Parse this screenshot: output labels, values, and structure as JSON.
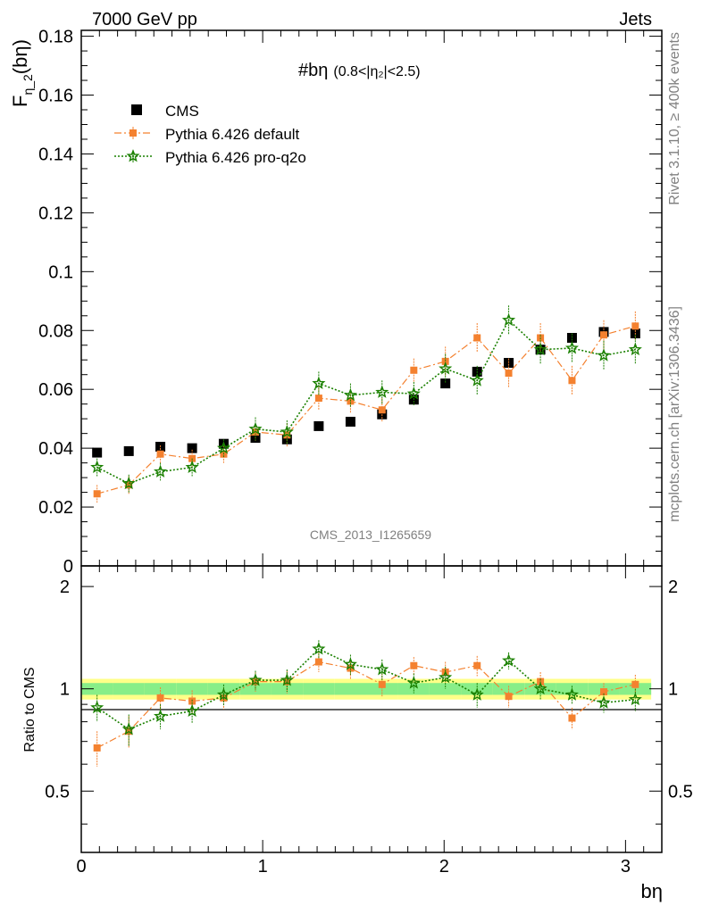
{
  "header": {
    "left": "7000 GeV pp",
    "right": "Jets"
  },
  "side_labels": {
    "rivet": "Rivet 3.1.10, ≥ 400k events",
    "mcplots": "mcplots.cern.ch [arXiv:1306.3436]"
  },
  "watermark": "CMS_2013_I1265659",
  "chart_data": {
    "type": "scatter",
    "title": "#bη",
    "title_cut": "(0.8<|η₂|<2.5)",
    "ylabel": "F_η_2(bη)",
    "ylabel_main": "F",
    "ylabel_sub": "η_2",
    "ylabel_paren": "(bη)",
    "xlabel": "bη",
    "ratio_ylabel": "Ratio to CMS",
    "xlim": [
      0,
      3.2
    ],
    "ylim": [
      0,
      0.182
    ],
    "ratio_ylim": [
      0.33,
      2.3
    ],
    "xticks": [
      "0",
      "1",
      "2",
      "3"
    ],
    "xtick_values": [
      0,
      1,
      2,
      3
    ],
    "yticks": [
      "0",
      "0.02",
      "0.04",
      "0.06",
      "0.08",
      "0.1",
      "0.12",
      "0.14",
      "0.16",
      "0.18"
    ],
    "ytick_values": [
      0,
      0.02,
      0.04,
      0.06,
      0.08,
      0.1,
      0.12,
      0.14,
      0.16,
      0.18
    ],
    "ratio_yticks": [
      "0.5",
      "1",
      "2"
    ],
    "ratio_ytick_values": [
      0.5,
      1,
      2
    ],
    "x": [
      0.087,
      0.262,
      0.436,
      0.611,
      0.785,
      0.96,
      1.134,
      1.309,
      1.484,
      1.658,
      1.833,
      2.007,
      2.182,
      2.356,
      2.531,
      2.705,
      2.88,
      3.054
    ],
    "series": [
      {
        "name": "CMS",
        "color": "#000000",
        "values": [
          0.0385,
          0.039,
          0.0405,
          0.04,
          0.0415,
          0.0435,
          0.043,
          0.0475,
          0.049,
          0.0515,
          0.0565,
          0.062,
          0.066,
          0.069,
          0.0735,
          0.0775,
          0.0795,
          0.079
        ],
        "errors": [
          0.001,
          0.001,
          0.001,
          0.001,
          0.001,
          0.001,
          0.001,
          0.001,
          0.001,
          0.001,
          0.001,
          0.001,
          0.001,
          0.001,
          0.001,
          0.001,
          0.0015,
          0.002
        ]
      },
      {
        "name": "Pythia 6.426 default",
        "color": "#f4812f",
        "values": [
          0.0245,
          0.0275,
          0.038,
          0.0365,
          0.038,
          0.0455,
          0.0445,
          0.057,
          0.056,
          0.053,
          0.0665,
          0.0695,
          0.0775,
          0.0655,
          0.0775,
          0.063,
          0.0785,
          0.0815
        ],
        "errors": [
          0.003,
          0.003,
          0.003,
          0.003,
          0.003,
          0.003,
          0.004,
          0.004,
          0.004,
          0.004,
          0.004,
          0.005,
          0.005,
          0.005,
          0.005,
          0.005,
          0.005,
          0.005
        ]
      },
      {
        "name": "Pythia 6.426 pro-q2o",
        "color": "#1a8000",
        "values": [
          0.0335,
          0.028,
          0.032,
          0.0335,
          0.04,
          0.0465,
          0.0455,
          0.062,
          0.058,
          0.059,
          0.0585,
          0.067,
          0.063,
          0.0835,
          0.0735,
          0.074,
          0.0715,
          0.0735
        ],
        "errors": [
          0.003,
          0.003,
          0.003,
          0.003,
          0.003,
          0.004,
          0.004,
          0.004,
          0.004,
          0.004,
          0.004,
          0.005,
          0.005,
          0.005,
          0.005,
          0.005,
          0.005,
          0.005
        ]
      }
    ],
    "ratio_series": [
      {
        "name": "Pythia 6.426 default",
        "values": [
          0.67,
          0.75,
          0.94,
          0.92,
          0.94,
          1.05,
          1.05,
          1.2,
          1.15,
          1.03,
          1.17,
          1.12,
          1.17,
          0.95,
          1.05,
          0.82,
          0.98,
          1.03
        ],
        "errors": [
          0.08,
          0.08,
          0.07,
          0.07,
          0.07,
          0.07,
          0.08,
          0.08,
          0.08,
          0.08,
          0.07,
          0.08,
          0.08,
          0.07,
          0.07,
          0.06,
          0.06,
          0.07
        ]
      },
      {
        "name": "Pythia 6.426 pro-q2o",
        "values": [
          0.88,
          0.76,
          0.83,
          0.86,
          0.96,
          1.06,
          1.06,
          1.31,
          1.18,
          1.14,
          1.04,
          1.08,
          0.96,
          1.21,
          1.0,
          0.96,
          0.91,
          0.93
        ],
        "errors": [
          0.08,
          0.08,
          0.07,
          0.07,
          0.07,
          0.07,
          0.08,
          0.08,
          0.08,
          0.08,
          0.07,
          0.08,
          0.08,
          0.07,
          0.07,
          0.06,
          0.06,
          0.07
        ]
      }
    ],
    "ratio_band": {
      "inner_color": "#88ee88",
      "outer_color": "#ffff88",
      "inner": [
        0.04,
        0.04,
        0.04,
        0.04,
        0.04,
        0.04,
        0.04,
        0.04,
        0.04,
        0.04,
        0.04,
        0.04,
        0.04,
        0.04,
        0.04,
        0.04,
        0.04,
        0.04
      ],
      "outer": [
        0.07,
        0.07,
        0.07,
        0.07,
        0.07,
        0.07,
        0.07,
        0.07,
        0.07,
        0.07,
        0.07,
        0.07,
        0.07,
        0.07,
        0.07,
        0.07,
        0.07,
        0.07
      ]
    },
    "legend": {
      "placement": "top-left",
      "entries": [
        "CMS",
        "Pythia 6.426 default",
        "Pythia 6.426 pro-q2o"
      ]
    }
  }
}
